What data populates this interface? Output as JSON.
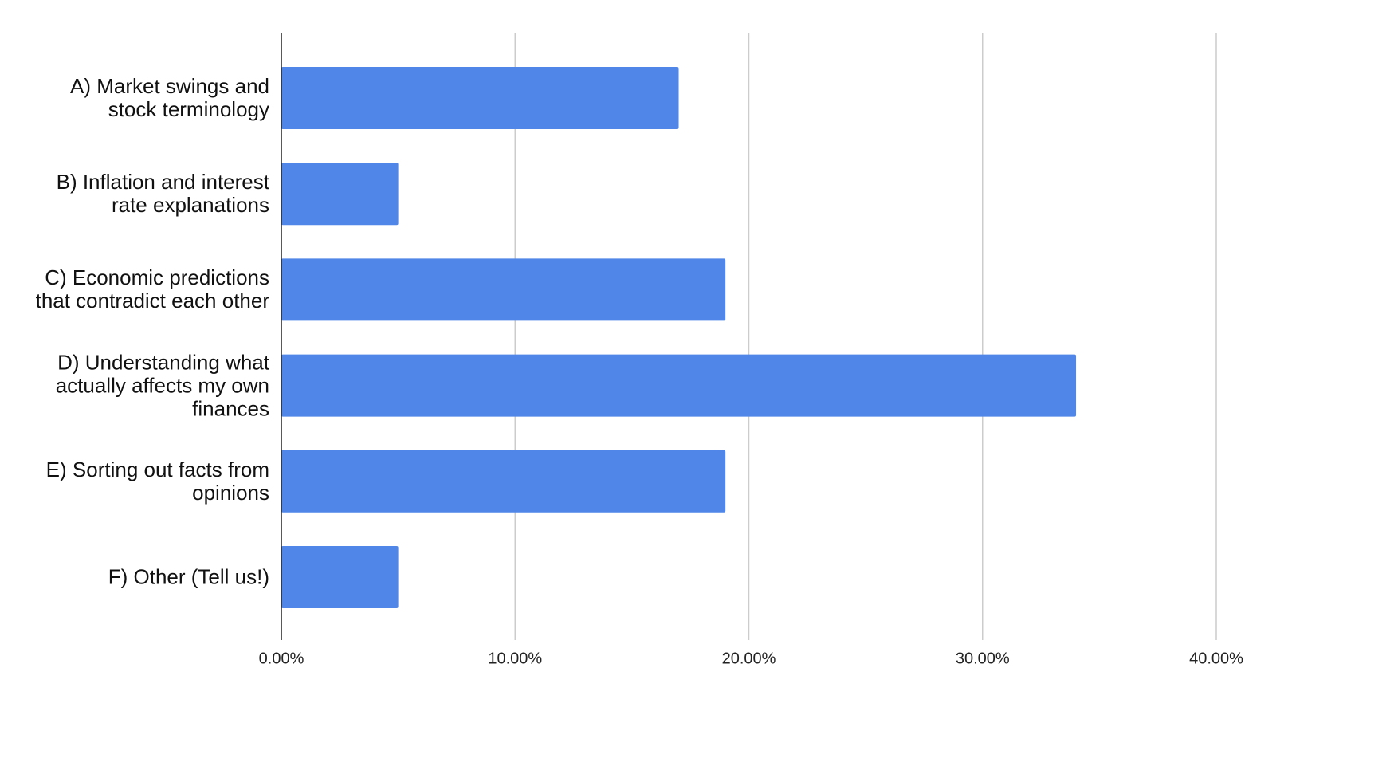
{
  "chart_data": {
    "type": "bar",
    "orientation": "horizontal",
    "categories": [
      "A) Market swings and stock terminology",
      "B) Inflation and interest rate explanations",
      "C) Economic predictions that contradict each other",
      "D) Understanding what actually affects my own finances",
      "E) Sorting out facts from opinions",
      "F) Other (Tell us!)"
    ],
    "values": [
      17,
      5,
      19,
      34,
      19,
      5
    ],
    "color": "#4f86e8",
    "xlim": [
      0,
      40
    ],
    "xticks": [
      {
        "value": 0,
        "label": "0.00%"
      },
      {
        "value": 10,
        "label": "10.00%"
      },
      {
        "value": 20,
        "label": "20.00%"
      },
      {
        "value": 30,
        "label": "30.00%"
      },
      {
        "value": 40,
        "label": "40.00%"
      }
    ],
    "grid": true
  }
}
